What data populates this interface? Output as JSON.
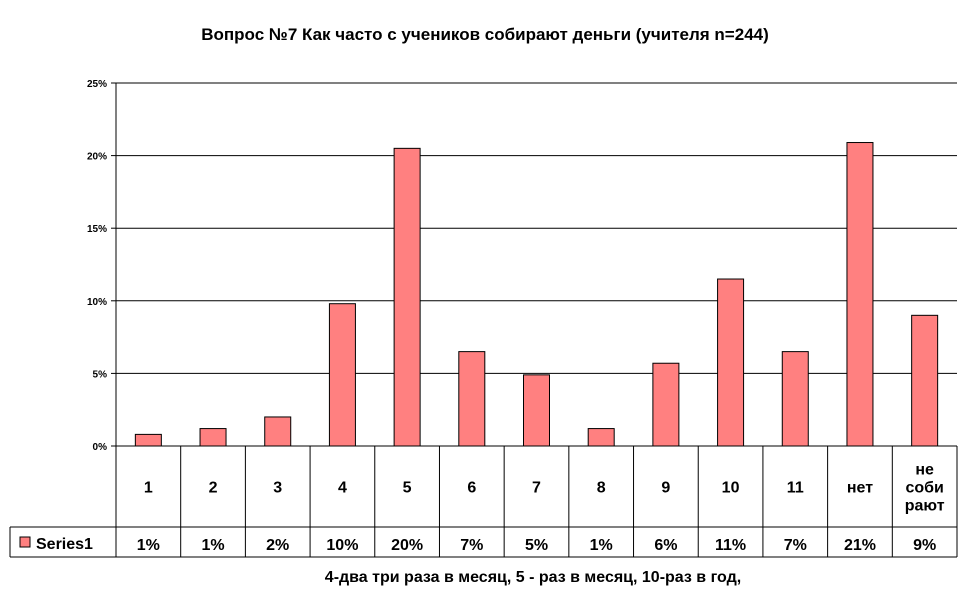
{
  "chart_data": {
    "type": "bar",
    "title": "Вопрос №7 Как часто с учеников собирают деньги (учителя n=244)",
    "xlabel": "4-два три раза в месяц, 5 - раз в месяц, 10-раз в год,",
    "ylabel": "",
    "ylim": [
      0,
      25
    ],
    "yticks": [
      "0%",
      "5%",
      "10%",
      "15%",
      "20%",
      "25%"
    ],
    "grid": true,
    "legend_position": "data-table-left",
    "categories": [
      [
        "1"
      ],
      [
        "2"
      ],
      [
        "3"
      ],
      [
        "4"
      ],
      [
        "5"
      ],
      [
        "6"
      ],
      [
        "7"
      ],
      [
        "8"
      ],
      [
        "9"
      ],
      [
        "10"
      ],
      [
        "11"
      ],
      [
        "нет"
      ],
      [
        "не",
        "соби",
        "рают"
      ]
    ],
    "series": [
      {
        "name": "Series1",
        "color": "#ff8080",
        "values": [
          0.8,
          1.2,
          2.0,
          9.8,
          20.5,
          6.5,
          4.9,
          1.2,
          5.7,
          11.5,
          6.5,
          20.9,
          9.0
        ],
        "labels": [
          "1%",
          "1%",
          "2%",
          "10%",
          "20%",
          "7%",
          "5%",
          "1%",
          "6%",
          "11%",
          "7%",
          "21%",
          "9%"
        ]
      }
    ]
  }
}
